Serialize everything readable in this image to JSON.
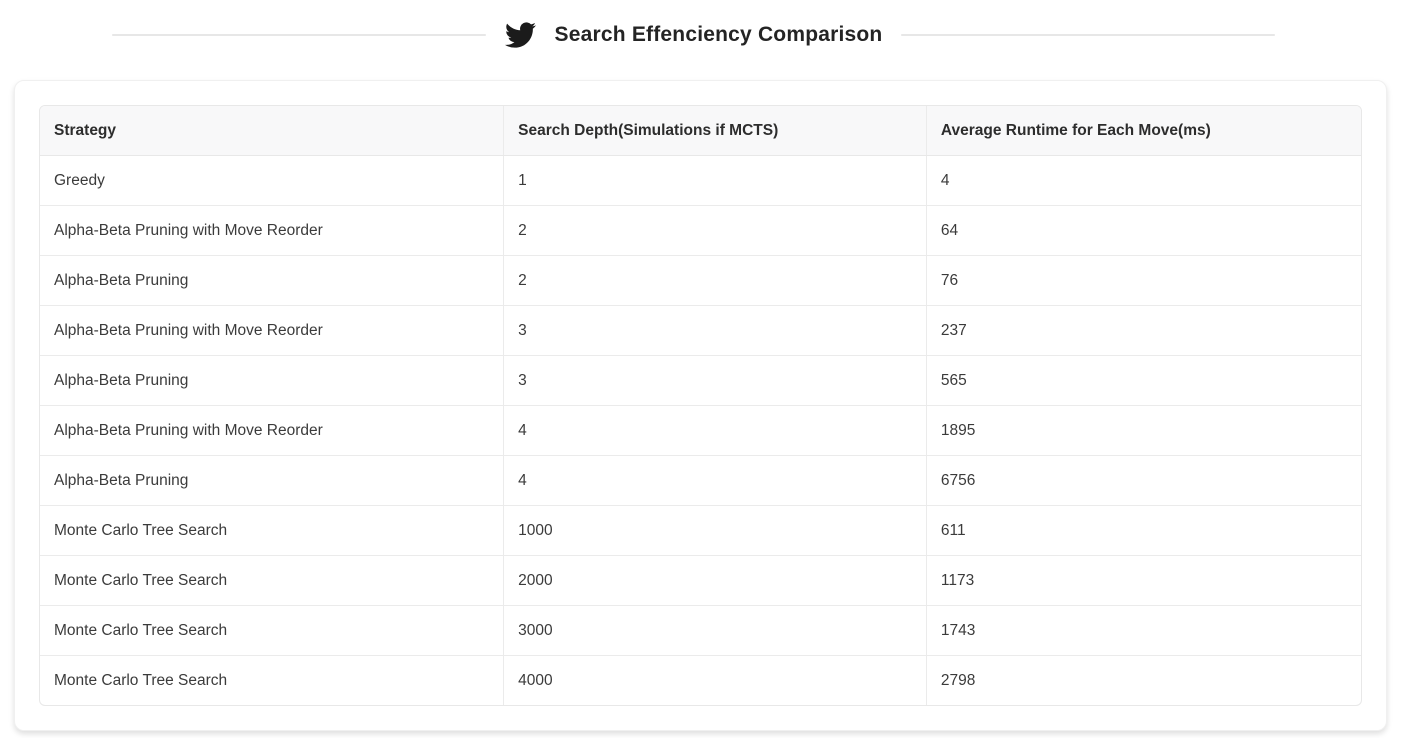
{
  "header": {
    "title": "Search Effenciency Comparison",
    "icon": "twitter-icon"
  },
  "table": {
    "columns": [
      "Strategy",
      "Search Depth(Simulations if MCTS)",
      "Average Runtime for Each Move(ms)"
    ],
    "rows": [
      [
        "Greedy",
        "1",
        "4"
      ],
      [
        "Alpha-Beta Pruning with Move Reorder",
        "2",
        "64"
      ],
      [
        "Alpha-Beta Pruning",
        "2",
        "76"
      ],
      [
        "Alpha-Beta Pruning with Move Reorder",
        "3",
        "237"
      ],
      [
        "Alpha-Beta Pruning",
        "3",
        "565"
      ],
      [
        "Alpha-Beta Pruning with Move Reorder",
        "4",
        "1895"
      ],
      [
        "Alpha-Beta Pruning",
        "4",
        "6756"
      ],
      [
        "Monte Carlo Tree Search",
        "1000",
        "611"
      ],
      [
        "Monte Carlo Tree Search",
        "2000",
        "1173"
      ],
      [
        "Monte Carlo Tree Search",
        "3000",
        "1743"
      ],
      [
        "Monte Carlo Tree Search",
        "4000",
        "2798"
      ]
    ]
  },
  "colors": {
    "title_text": "#242424",
    "icon_fill": "#1b1b1b",
    "header_row_bg": "#f8f8f9",
    "table_border": "#e8e8e8",
    "row_divider": "#ebebeb",
    "body_text": "#3b3b3b",
    "divider_line": "#e7e7e7",
    "card_bg": "#ffffff"
  }
}
